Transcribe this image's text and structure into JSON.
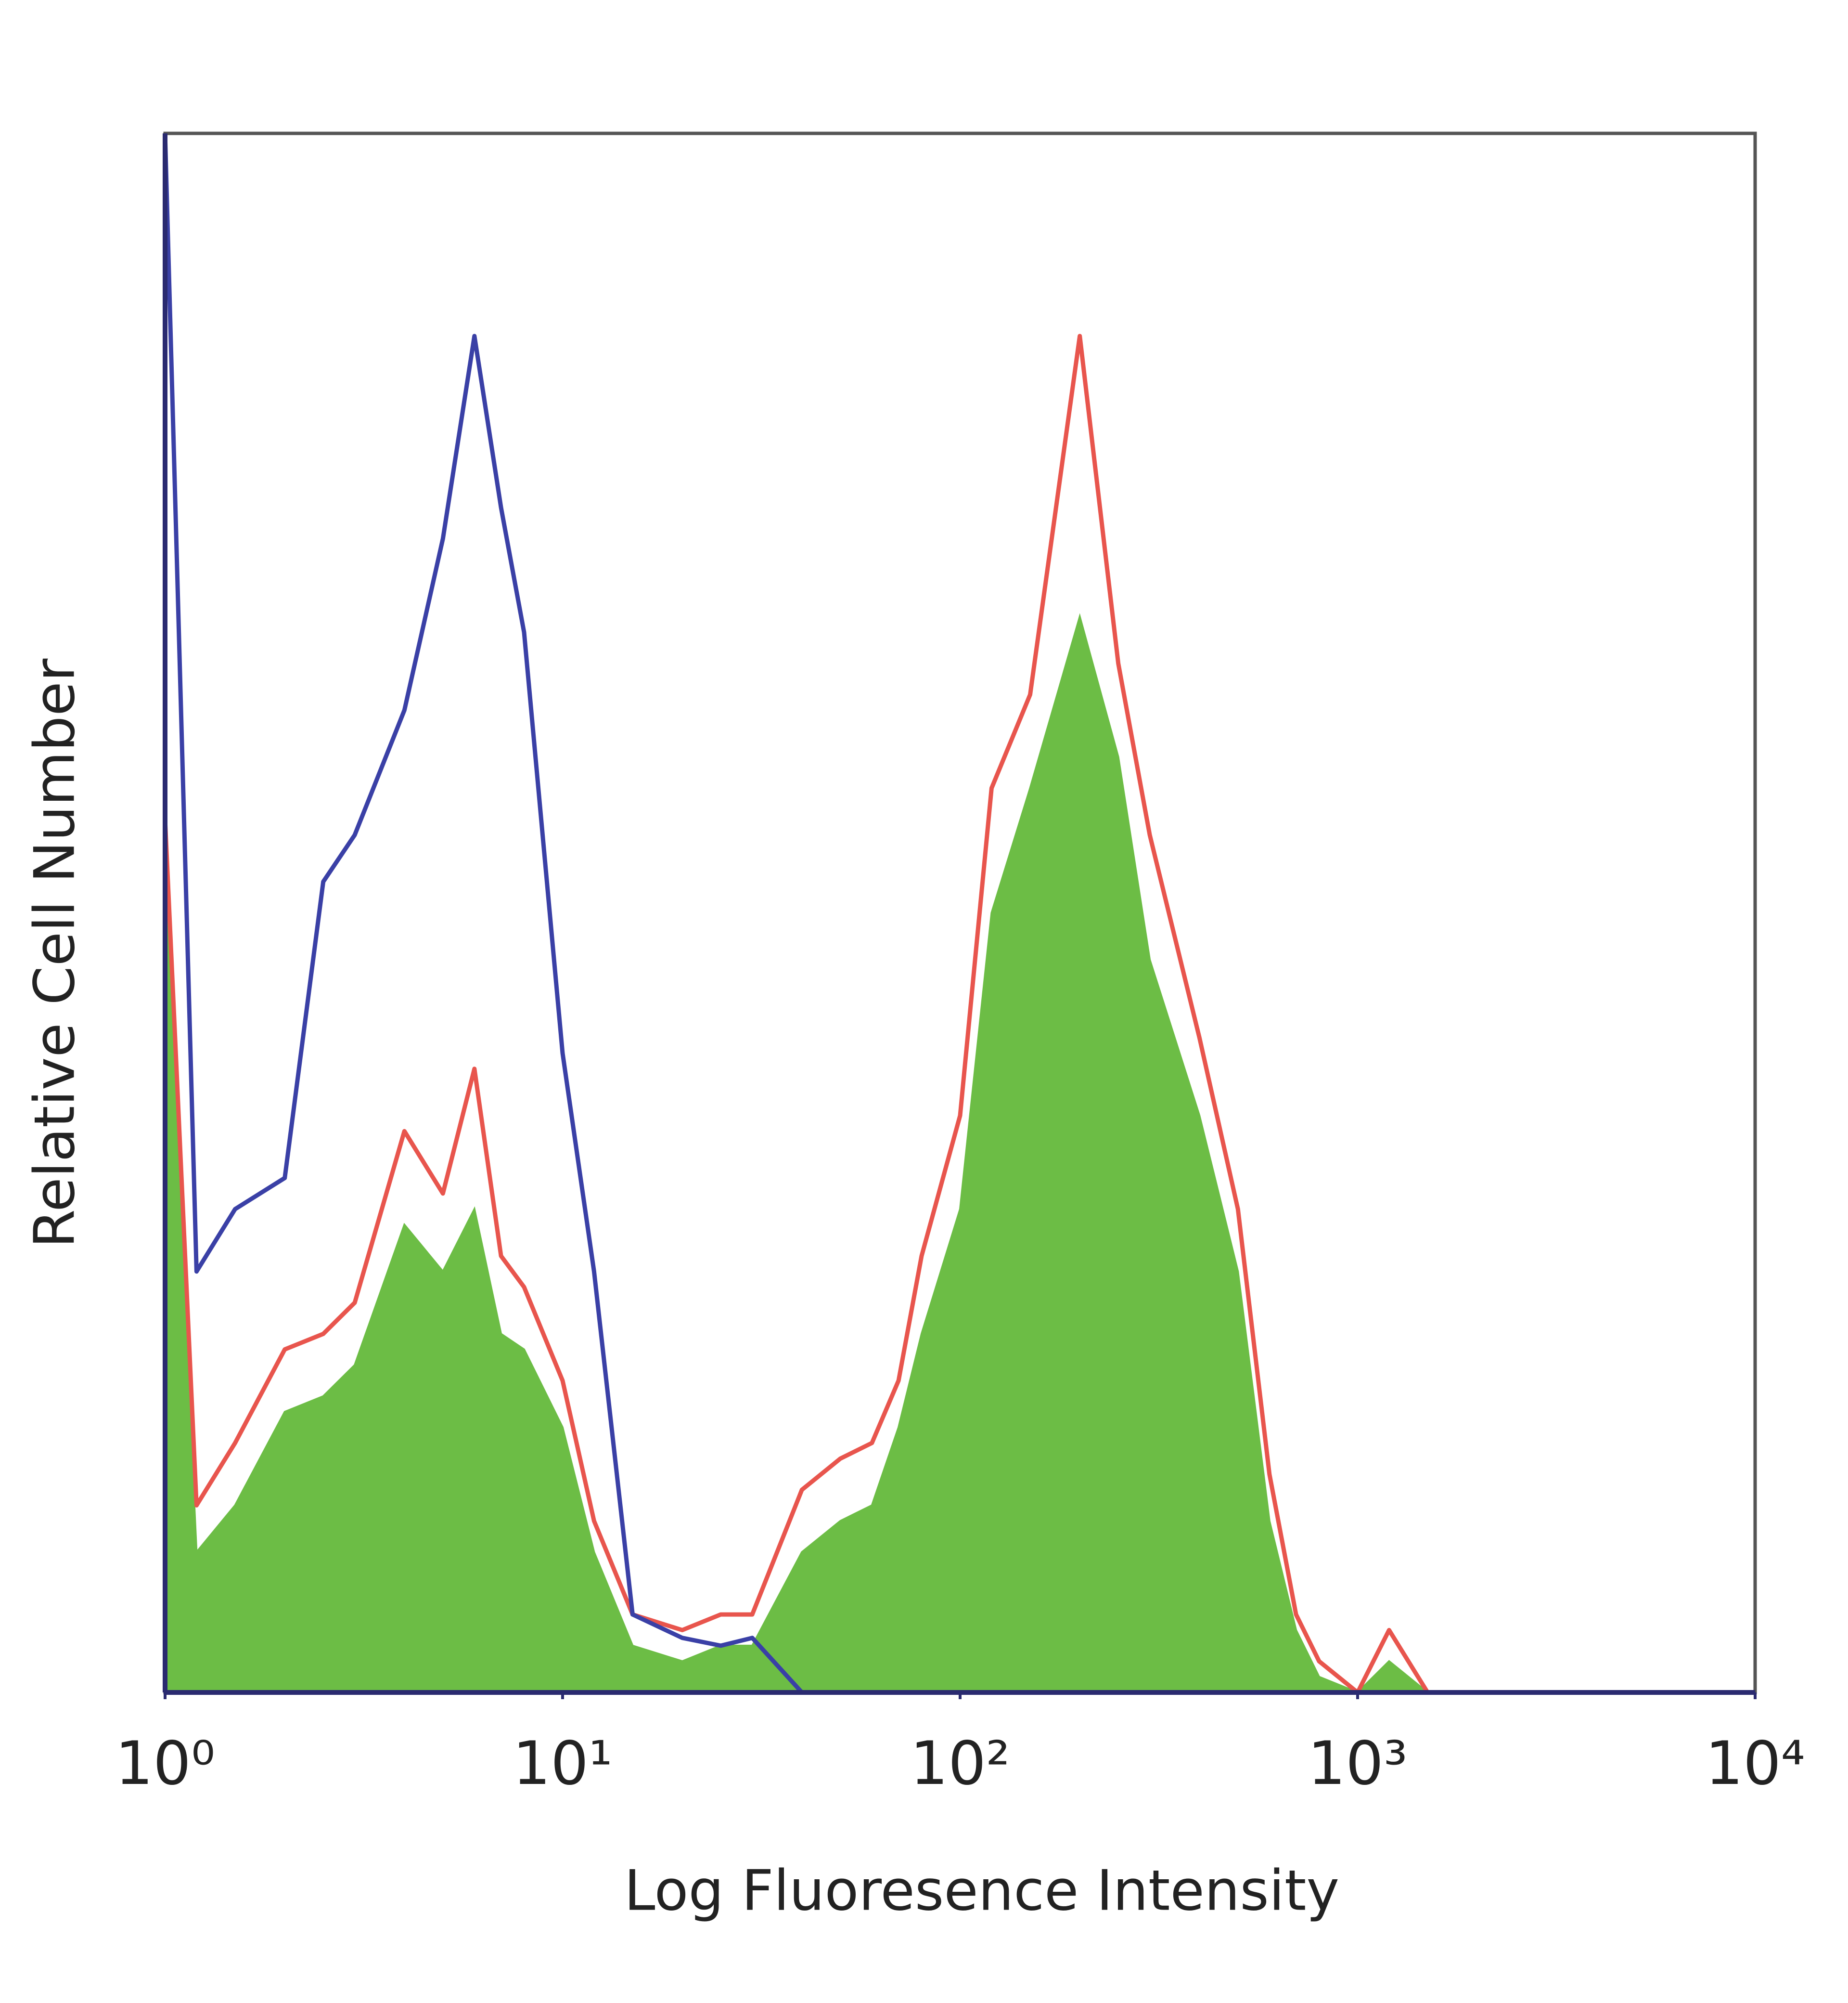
{
  "chart_data": {
    "type": "histogram-overlay",
    "x_label": "Log Fluoresence Intensity",
    "y_label": "Relative Cell Number",
    "x_scale": "log",
    "xlim": [
      1,
      10000
    ],
    "ylim": [
      0,
      100
    ],
    "xticks": [
      {
        "value": 1,
        "label": "10⁰"
      },
      {
        "value": 10,
        "label": "10¹"
      },
      {
        "value": 100,
        "label": "10²"
      },
      {
        "value": 1000,
        "label": "10³"
      },
      {
        "value": 10000,
        "label": "10⁴"
      }
    ],
    "x": [
      1,
      1.2,
      1.5,
      2,
      2.5,
      3,
      4,
      5,
      6,
      7,
      8,
      10,
      12,
      15,
      20,
      25,
      30,
      40,
      50,
      60,
      70,
      80,
      100,
      120,
      150,
      200,
      250,
      300,
      400,
      500,
      600,
      700,
      800,
      1000,
      1200,
      1500,
      2000
    ],
    "series": [
      {
        "name": "green",
        "color": "#6cbd45",
        "fill": true,
        "values": [
          52,
          9,
          12,
          18,
          19,
          21,
          30,
          27,
          31,
          23,
          22,
          17,
          9,
          3,
          2,
          3,
          3,
          9,
          11,
          12,
          17,
          23,
          31,
          50,
          58,
          69,
          60,
          47,
          37,
          27,
          11,
          4,
          1,
          0,
          2,
          0,
          0
        ]
      },
      {
        "name": "red",
        "color": "#e8554d",
        "fill": false,
        "values": [
          56,
          12,
          16,
          22,
          23,
          25,
          36,
          32,
          40,
          28,
          26,
          20,
          11,
          5,
          4,
          5,
          5,
          13,
          15,
          16,
          20,
          28,
          37,
          58,
          64,
          87,
          66,
          55,
          42,
          31,
          14,
          5,
          2,
          0,
          4,
          0,
          0
        ]
      },
      {
        "name": "blue",
        "color": "#3a40a6",
        "fill": false,
        "values": [
          100,
          27,
          31,
          33,
          52,
          55,
          63,
          74,
          87,
          76,
          68,
          41,
          27,
          5,
          3.5,
          3,
          3.5,
          0,
          0,
          0,
          0,
          0,
          0,
          0,
          0,
          0,
          0,
          0,
          0,
          0,
          0,
          0,
          0,
          0,
          0,
          0,
          0
        ]
      }
    ]
  }
}
